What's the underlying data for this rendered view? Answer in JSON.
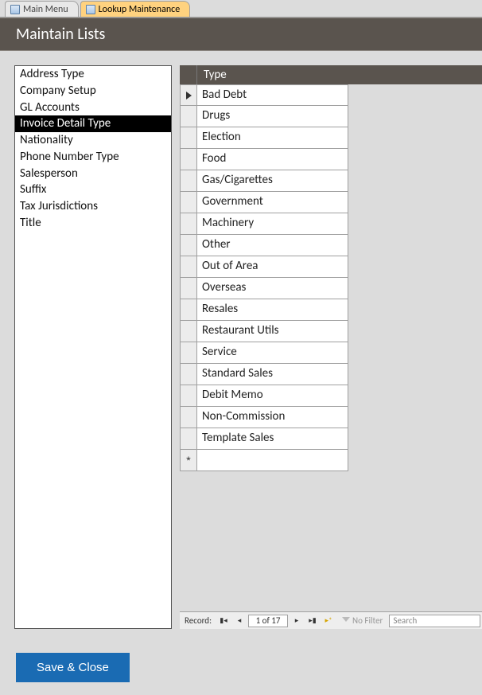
{
  "tabs": [
    {
      "label": "Main Menu",
      "active": false
    },
    {
      "label": "Lookup Maintenance",
      "active": true
    }
  ],
  "header": {
    "title": "Maintain Lists"
  },
  "sidebar": {
    "items": [
      "Address Type",
      "Company Setup",
      "GL Accounts",
      "Invoice Detail Type",
      "Nationality",
      "Phone Number Type",
      "Salesperson",
      "Suffix",
      "Tax Jurisdictions",
      "Title"
    ],
    "selected_index": 3
  },
  "datasheet": {
    "column_header": "Type",
    "rows": [
      "Bad Debt",
      "Drugs",
      "Election",
      "Food",
      "Gas/Cigarettes",
      "Government",
      "Machinery",
      "Other",
      "Out of Area",
      "Overseas",
      "Resales",
      "Restaurant Utils",
      "Service",
      "Standard Sales",
      "Debit Memo",
      "Non-Commission",
      "Template Sales"
    ],
    "current_row_index": 0
  },
  "recordnav": {
    "label": "Record:",
    "position_text": "1 of 17",
    "filter_label": "No Filter",
    "search_placeholder": "Search"
  },
  "footer": {
    "save_label": "Save & Close"
  },
  "colors": {
    "header_bg": "#5a544e",
    "accent": "#1a6bb3",
    "tab_active": "#ffd27f",
    "workspace_bg": "#dcdcdc"
  }
}
